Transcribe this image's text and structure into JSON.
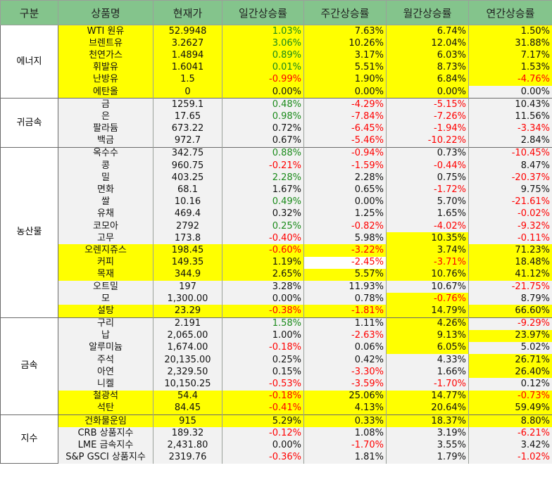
{
  "headers": [
    "구분",
    "상품명",
    "현재가",
    "일간상승률",
    "주간상승률",
    "월간상승률",
    "연간상승률"
  ],
  "groups": [
    {
      "name": "에너지",
      "rows": [
        {
          "name": "WTI 원유",
          "price": "52.9948",
          "d": "1.03%",
          "w": "7.63%",
          "m": "6.74%",
          "y": "1.50%"
        },
        {
          "name": "브렌트유",
          "price": "3.2627",
          "d": "3.06%",
          "w": "10.26%",
          "m": "12.04%",
          "y": "31.88%"
        },
        {
          "name": "천연가스",
          "price": "1.4894",
          "d": "0.89%",
          "w": "3.17%",
          "m": "6.03%",
          "y": "7.17%"
        },
        {
          "name": "휘발유",
          "price": "1.6041",
          "d": "0.01%",
          "w": "5.51%",
          "m": "8.73%",
          "y": "1.53%"
        },
        {
          "name": "난방유",
          "price": "1.5",
          "d": "-0.99%",
          "w": "1.90%",
          "m": "6.84%",
          "y": "-4.76%"
        },
        {
          "name": "에탄올",
          "price": "0",
          "d": "0.00%",
          "w": "0.00%",
          "m": "0.00%",
          "y": "0.00%"
        }
      ]
    },
    {
      "name": "귀금속",
      "rows": [
        {
          "name": "금",
          "price": "1259.1",
          "d": "0.48%",
          "w": "-4.29%",
          "m": "-5.15%",
          "y": "10.43%"
        },
        {
          "name": "은",
          "price": "17.65",
          "d": "0.98%",
          "w": "-7.84%",
          "m": "-7.26%",
          "y": "11.56%"
        },
        {
          "name": "팔라듐",
          "price": "673.22",
          "d": "0.72%",
          "w": "-6.45%",
          "m": "-1.94%",
          "y": "-3.34%"
        },
        {
          "name": "백금",
          "price": "972.7",
          "d": "0.67%",
          "w": "-5.46%",
          "m": "-10.22%",
          "y": "2.84%"
        }
      ]
    },
    {
      "name": "농산물",
      "rows": [
        {
          "name": "옥수수",
          "price": "342.75",
          "d": "0.88%",
          "w": "-0.94%",
          "m": "0.73%",
          "y": "-10.45%"
        },
        {
          "name": "콩",
          "price": "960.75",
          "d": "-0.21%",
          "w": "-1.59%",
          "m": "-0.44%",
          "y": "8.47%"
        },
        {
          "name": "밀",
          "price": "403.25",
          "d": "2.28%",
          "w": "2.28%",
          "m": "0.75%",
          "y": "-20.37%"
        },
        {
          "name": "면화",
          "price": "68.1",
          "d": "1.67%",
          "w": "0.65%",
          "m": "-1.72%",
          "y": "9.75%"
        },
        {
          "name": "쌀",
          "price": "10.16",
          "d": "0.49%",
          "w": "0.00%",
          "m": "5.70%",
          "y": "-21.61%"
        },
        {
          "name": "유채",
          "price": "469.4",
          "d": "0.32%",
          "w": "1.25%",
          "m": "1.65%",
          "y": "-0.02%"
        },
        {
          "name": "코모아",
          "price": "2792",
          "d": "0.25%",
          "w": "-0.82%",
          "m": "-4.02%",
          "y": "-9.32%"
        },
        {
          "name": "고무",
          "price": "173.8",
          "d": "-0.40%",
          "w": "5.98%",
          "m": "10.35%",
          "y": "-0.11%"
        },
        {
          "name": "오렌지쥬스",
          "price": "198.45",
          "d": "-0.60%",
          "w": "-3.22%",
          "m": "3.74%",
          "y": "71.23%"
        },
        {
          "name": "커피",
          "price": "149.35",
          "d": "1.19%",
          "w": "-2.45%",
          "m": "-3.71%",
          "y": "18.48%"
        },
        {
          "name": "목재",
          "price": "344.9",
          "d": "2.65%",
          "w": "5.57%",
          "m": "10.76%",
          "y": "41.12%"
        },
        {
          "name": "오트밀",
          "price": "197",
          "d": "3.28%",
          "w": "11.93%",
          "m": "10.67%",
          "y": "-21.75%"
        },
        {
          "name": "모",
          "price": "1,300.00",
          "d": "0.00%",
          "w": "0.78%",
          "m": "-0.76%",
          "y": "8.79%"
        },
        {
          "name": "설탕",
          "price": "23.29",
          "d": "-0.38%",
          "w": "-1.81%",
          "m": "14.79%",
          "y": "66.60%"
        }
      ]
    },
    {
      "name": "금속",
      "rows": [
        {
          "name": "구리",
          "price": "2.191",
          "d": "1.58%",
          "w": "1.11%",
          "m": "4.26%",
          "y": "-9.29%"
        },
        {
          "name": "납",
          "price": "2,065.00",
          "d": "1.00%",
          "w": "-2.63%",
          "m": "9.13%",
          "y": "23.97%"
        },
        {
          "name": "알루미늄",
          "price": "1,674.00",
          "d": "-0.18%",
          "w": "0.06%",
          "m": "6.05%",
          "y": "5.02%"
        },
        {
          "name": "주석",
          "price": "20,135.00",
          "d": "0.25%",
          "w": "0.42%",
          "m": "4.33%",
          "y": "26.71%"
        },
        {
          "name": "아연",
          "price": "2,329.50",
          "d": "0.15%",
          "w": "-3.30%",
          "m": "1.66%",
          "y": "26.40%"
        },
        {
          "name": "니켈",
          "price": "10,150.25",
          "d": "-0.53%",
          "w": "-3.59%",
          "m": "-1.70%",
          "y": "0.12%"
        },
        {
          "name": "철광석",
          "price": "54.4",
          "d": "-0.18%",
          "w": "25.06%",
          "m": "14.77%",
          "y": "-0.73%"
        },
        {
          "name": "석탄",
          "price": "84.45",
          "d": "-0.41%",
          "w": "4.13%",
          "m": "20.64%",
          "y": "59.49%"
        }
      ]
    },
    {
      "name": "지수",
      "rows": [
        {
          "name": "건화물운임",
          "price": "915",
          "d": "5.29%",
          "w": "0.33%",
          "m": "18.37%",
          "y": "8.80%"
        },
        {
          "name": "CRB 상품지수",
          "price": "189.32",
          "d": "-0.12%",
          "w": "1.08%",
          "m": "3.19%",
          "y": "-6.21%"
        },
        {
          "name": "LME 금속지수",
          "price": "2,431.80",
          "d": "0.00%",
          "w": "-1.70%",
          "m": "3.55%",
          "y": "3.42%"
        },
        {
          "name": "S&P GSCI 상품지수",
          "price": "2319.76",
          "d": "-0.36%",
          "w": "1.81%",
          "m": "1.79%",
          "y": "-1.02%"
        }
      ]
    }
  ]
}
